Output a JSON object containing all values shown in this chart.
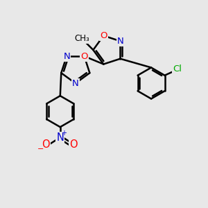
{
  "bg_color": "#e8e8e8",
  "atom_colors": {
    "O": "#ff0000",
    "N": "#0000cc",
    "Cl": "#00aa00",
    "C": "#000000"
  },
  "bond_color": "#000000",
  "bond_width": 1.8,
  "fig_size": [
    3.0,
    3.0
  ],
  "dpi": 100,
  "xlim": [
    0,
    10
  ],
  "ylim": [
    0,
    10
  ]
}
